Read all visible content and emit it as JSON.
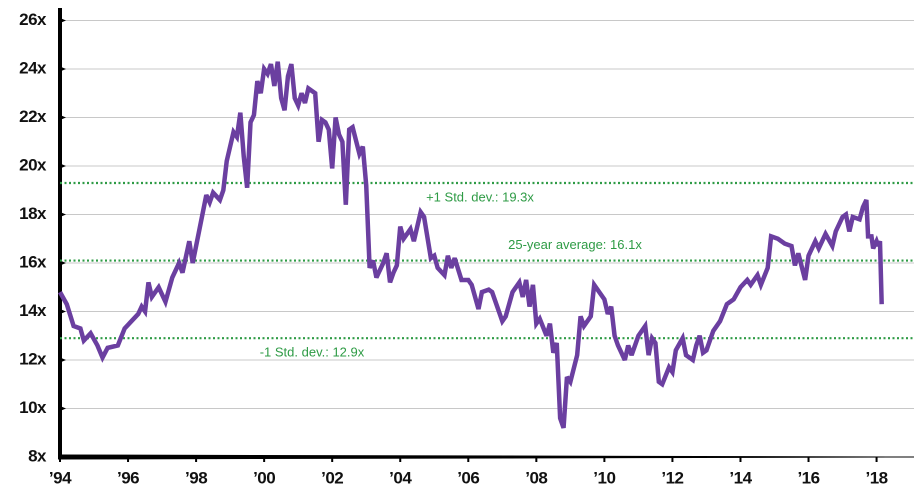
{
  "chart_data": {
    "type": "line",
    "color": "#6b3fa0",
    "grid": true,
    "xlim": [
      1994,
      2019.1
    ],
    "ylim": [
      8,
      26
    ],
    "yticks": [
      {
        "value": 8,
        "label": "8x"
      },
      {
        "value": 10,
        "label": "10x"
      },
      {
        "value": 12,
        "label": "12x"
      },
      {
        "value": 14,
        "label": "14x"
      },
      {
        "value": 16,
        "label": "16x"
      },
      {
        "value": 18,
        "label": "18x"
      },
      {
        "value": 20,
        "label": "20x"
      },
      {
        "value": 22,
        "label": "22x"
      },
      {
        "value": 24,
        "label": "24x"
      },
      {
        "value": 26,
        "label": "26x"
      }
    ],
    "xticks": [
      {
        "value": 1994,
        "label": "’94"
      },
      {
        "value": 1996,
        "label": "’96"
      },
      {
        "value": 1998,
        "label": "’98"
      },
      {
        "value": 2000,
        "label": "’00"
      },
      {
        "value": 2002,
        "label": "’02"
      },
      {
        "value": 2004,
        "label": "’04"
      },
      {
        "value": 2006,
        "label": "’06"
      },
      {
        "value": 2008,
        "label": "’08"
      },
      {
        "value": 2010,
        "label": "’10"
      },
      {
        "value": 2012,
        "label": "’12"
      },
      {
        "value": 2014,
        "label": "’14"
      },
      {
        "value": 2016,
        "label": "’16"
      },
      {
        "value": 2018,
        "label": "’18"
      }
    ],
    "reference_lines": [
      {
        "value": 19.3,
        "label": "+1 Std. dev.: 19.3x",
        "color": "#2e9b45"
      },
      {
        "value": 16.1,
        "label": "25-year average: 16.1x",
        "color": "#2e9b45"
      },
      {
        "value": 12.9,
        "label": "-1 Std. dev.: 12.9x",
        "color": "#2e9b45"
      }
    ],
    "x": [
      1994.0,
      1994.2,
      1994.4,
      1994.6,
      1994.7,
      1994.9,
      1995.1,
      1995.25,
      1995.4,
      1995.7,
      1995.9,
      1996.1,
      1996.3,
      1996.4,
      1996.5,
      1996.6,
      1996.7,
      1996.9,
      1997.1,
      1997.3,
      1997.5,
      1997.6,
      1997.8,
      1997.9,
      1998.1,
      1998.3,
      1998.4,
      1998.5,
      1998.7,
      1998.8,
      1998.9,
      1999.1,
      1999.2,
      1999.3,
      1999.4,
      1999.5,
      1999.6,
      1999.7,
      1999.8,
      1999.9,
      2000.0,
      2000.1,
      2000.2,
      2000.3,
      2000.4,
      2000.5,
      2000.6,
      2000.7,
      2000.8,
      2000.9,
      2001.0,
      2001.1,
      2001.2,
      2001.3,
      2001.5,
      2001.6,
      2001.7,
      2001.8,
      2001.9,
      2002.0,
      2002.1,
      2002.2,
      2002.3,
      2002.4,
      2002.5,
      2002.6,
      2002.8,
      2002.9,
      2003.0,
      2003.1,
      2003.2,
      2003.3,
      2003.5,
      2003.6,
      2003.7,
      2003.8,
      2003.9,
      2004.0,
      2004.1,
      2004.3,
      2004.4,
      2004.6,
      2004.7,
      2004.9,
      2005.0,
      2005.1,
      2005.3,
      2005.4,
      2005.5,
      2005.6,
      2005.8,
      2006.0,
      2006.1,
      2006.3,
      2006.4,
      2006.6,
      2006.7,
      2006.9,
      2007.0,
      2007.1,
      2007.3,
      2007.5,
      2007.6,
      2007.7,
      2007.8,
      2007.9,
      2008.0,
      2008.1,
      2008.3,
      2008.4,
      2008.5,
      2008.6,
      2008.7,
      2008.8,
      2008.9,
      2009.0,
      2009.2,
      2009.3,
      2009.4,
      2009.6,
      2009.7,
      2009.8,
      2010.0,
      2010.1,
      2010.2,
      2010.3,
      2010.4,
      2010.6,
      2010.7,
      2010.8,
      2011.0,
      2011.2,
      2011.3,
      2011.4,
      2011.5,
      2011.6,
      2011.7,
      2011.9,
      2012.0,
      2012.1,
      2012.3,
      2012.4,
      2012.6,
      2012.7,
      2012.8,
      2012.9,
      2013.0,
      2013.2,
      2013.4,
      2013.6,
      2013.8,
      2014.0,
      2014.2,
      2014.3,
      2014.5,
      2014.6,
      2014.8,
      2014.9,
      2015.1,
      2015.3,
      2015.5,
      2015.6,
      2015.7,
      2015.9,
      2016.0,
      2016.2,
      2016.3,
      2016.5,
      2016.7,
      2016.8,
      2017.0,
      2017.1,
      2017.2,
      2017.3,
      2017.5,
      2017.6,
      2017.7,
      2017.75,
      2017.85,
      2017.9,
      2018.0,
      2018.05,
      2018.1,
      2018.15
    ],
    "values": [
      14.8,
      14.3,
      13.4,
      13.3,
      12.8,
      13.1,
      12.6,
      12.1,
      12.5,
      12.6,
      13.3,
      13.6,
      13.9,
      14.2,
      14.0,
      15.2,
      14.6,
      15.0,
      14.4,
      15.4,
      16.0,
      15.6,
      16.9,
      16.0,
      17.4,
      18.8,
      18.5,
      18.9,
      18.6,
      19.0,
      20.2,
      21.4,
      21.2,
      22.2,
      20.4,
      19.1,
      21.8,
      22.1,
      23.5,
      23.0,
      24.0,
      23.8,
      24.2,
      23.3,
      24.3,
      22.8,
      22.3,
      23.7,
      24.2,
      22.8,
      22.5,
      23.0,
      22.6,
      23.2,
      23.0,
      21.0,
      21.9,
      21.8,
      21.5,
      19.9,
      22.0,
      21.3,
      21.0,
      18.4,
      21.5,
      21.6,
      20.5,
      20.8,
      19.2,
      15.8,
      16.1,
      15.4,
      16.0,
      16.4,
      15.2,
      15.6,
      15.9,
      17.5,
      17.0,
      17.4,
      16.9,
      18.1,
      17.9,
      16.2,
      16.3,
      15.8,
      15.5,
      16.3,
      15.8,
      16.2,
      15.3,
      15.3,
      15.1,
      14.1,
      14.8,
      14.9,
      14.8,
      14.0,
      13.6,
      13.8,
      14.8,
      15.2,
      14.6,
      15.3,
      14.2,
      15.1,
      13.5,
      13.7,
      13.0,
      13.5,
      12.3,
      12.7,
      9.6,
      9.2,
      11.3,
      11.1,
      12.2,
      13.8,
      13.4,
      13.8,
      15.1,
      14.9,
      14.5,
      13.9,
      14.2,
      13.0,
      12.6,
      12.0,
      12.6,
      12.2,
      13.0,
      13.4,
      12.2,
      12.9,
      12.7,
      11.1,
      11.0,
      11.7,
      11.5,
      12.4,
      12.9,
      12.2,
      12.0,
      12.6,
      13.0,
      12.3,
      12.4,
      13.2,
      13.6,
      14.3,
      14.5,
      15.0,
      15.3,
      15.1,
      15.5,
      15.1,
      15.8,
      17.1,
      17.0,
      16.8,
      16.7,
      15.9,
      16.4,
      15.3,
      16.3,
      16.9,
      16.6,
      17.2,
      16.7,
      17.3,
      17.9,
      18.0,
      17.3,
      17.9,
      17.8,
      18.3,
      18.6,
      17.1,
      17.1,
      16.6,
      16.9,
      16.7,
      16.9,
      14.3
    ]
  }
}
